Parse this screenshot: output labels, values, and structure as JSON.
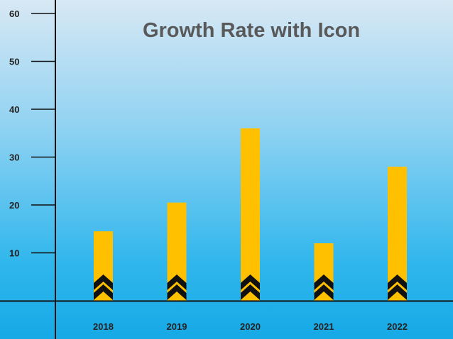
{
  "chart_data": {
    "type": "bar",
    "title": "Growth Rate with Icon",
    "categories": [
      "2018",
      "2019",
      "2020",
      "2021",
      "2022"
    ],
    "values": [
      14.5,
      20.5,
      36,
      12,
      28
    ],
    "ylim": [
      0,
      60
    ],
    "yticks": [
      10,
      20,
      30,
      40,
      50,
      60
    ],
    "xlabel": "",
    "ylabel": "",
    "grid": false,
    "legend": "none",
    "bar_icon": "chevron-up-icon",
    "colors": {
      "bar": "#ffc000",
      "icon": "#111111",
      "axis": "#111111",
      "text": "#222222",
      "title": "#595959"
    }
  }
}
